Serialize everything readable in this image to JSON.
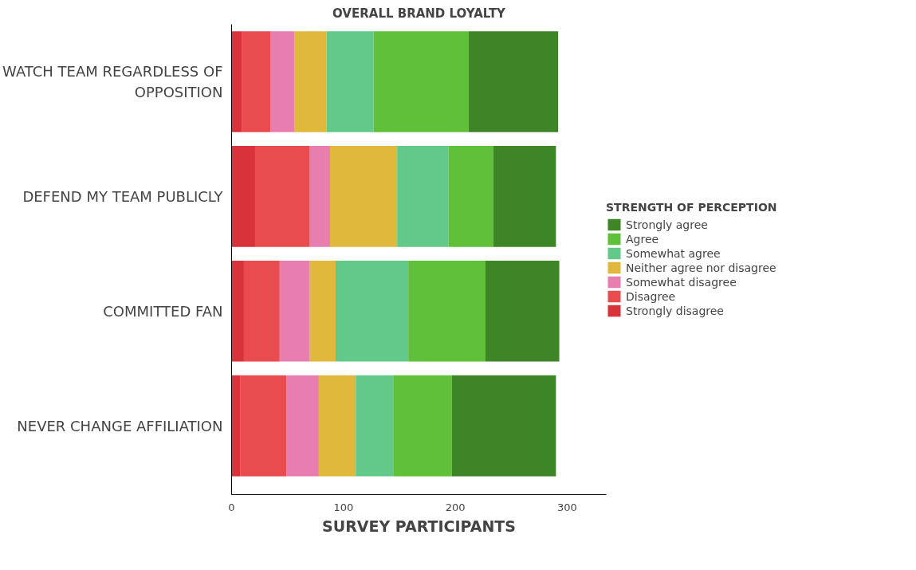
{
  "chart_data": {
    "type": "bar",
    "orientation": "horizontal",
    "stacked": true,
    "title": "OVERALL BRAND LOYALTY",
    "xlabel": "SURVEY PARTICIPANTS",
    "legend_title": "STRENGTH OF PERCEPTION",
    "legend": "right",
    "categories": [
      "WATCH TEAM REGARDLESS OF OPPOSITION",
      "DEFEND MY TEAM PUBLICLY",
      "COMMITTED FAN",
      "NEVER CHANGE AFFILIATION"
    ],
    "series": [
      {
        "name": "Strongly disagree",
        "color": "#d8323a",
        "values": [
          9,
          21,
          11,
          8
        ]
      },
      {
        "name": "Disagree",
        "color": "#e84c4e",
        "values": [
          26,
          49,
          32,
          41
        ]
      },
      {
        "name": "Somewhat disagree",
        "color": "#e87eb0",
        "values": [
          21,
          18,
          27,
          29
        ]
      },
      {
        "name": "Neither agree nor disagree",
        "color": "#dfb83c",
        "values": [
          29,
          60,
          23,
          33
        ]
      },
      {
        "name": "Somewhat agree",
        "color": "#63c98a",
        "values": [
          42,
          46,
          65,
          34
        ]
      },
      {
        "name": "Agree",
        "color": "#60c03a",
        "values": [
          85,
          40,
          69,
          52
        ]
      },
      {
        "name": "Strongly agree",
        "color": "#3e8528",
        "values": [
          80,
          56,
          66,
          93
        ]
      }
    ],
    "xlim": [
      0,
      335
    ],
    "xticks": [
      0,
      100,
      200,
      300
    ],
    "grid": false
  }
}
